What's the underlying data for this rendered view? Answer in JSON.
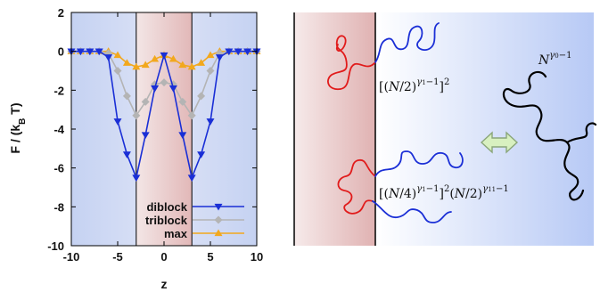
{
  "chart_data": {
    "type": "line",
    "xlabel": "z",
    "ylabel_main": "F / (k",
    "ylabel_sub": "B",
    "ylabel_end": " T)",
    "xlim": [
      -10,
      10
    ],
    "ylim": [
      -10,
      2
    ],
    "x_ticks": [
      -10,
      -5,
      0,
      5,
      10
    ],
    "y_ticks": [
      2,
      0,
      -2,
      -4,
      -6,
      -8,
      -10
    ],
    "boundaries": [
      -3,
      3
    ],
    "legend_position": "bottom-right",
    "series": [
      {
        "name": "diblock",
        "color": "#1a2fd6",
        "marker": "triangle-down",
        "x": [
          -10,
          -9,
          -8,
          -7,
          -6,
          -5,
          -4,
          -3,
          -2,
          -1,
          0,
          1,
          2,
          3,
          4,
          5,
          6,
          7,
          8,
          9,
          10
        ],
        "y": [
          0,
          0,
          0,
          0,
          -0.3,
          -3.6,
          -5.3,
          -6.5,
          -4.3,
          -1.9,
          -0.2,
          -1.9,
          -4.3,
          -6.5,
          -5.3,
          -3.6,
          -0.3,
          0,
          0,
          0,
          0
        ]
      },
      {
        "name": "triblock",
        "color": "#b4b4b4",
        "marker": "diamond",
        "x": [
          -10,
          -9,
          -8,
          -7,
          -6,
          -5,
          -4,
          -3,
          -2,
          -1,
          0,
          1,
          2,
          3,
          4,
          5,
          6,
          7,
          8,
          9,
          10
        ],
        "y": [
          0,
          0,
          0,
          0,
          -0.1,
          -1.0,
          -2.3,
          -3.3,
          -2.6,
          -1.7,
          -1.6,
          -1.7,
          -2.6,
          -3.3,
          -2.3,
          -1.0,
          -0.1,
          0,
          0,
          0,
          0
        ]
      },
      {
        "name": "max",
        "color": "#f2a81d",
        "marker": "triangle-up",
        "x": [
          -10,
          -9,
          -8,
          -7,
          -6,
          -5,
          -4,
          -3,
          -2,
          -1,
          0,
          1,
          2,
          3,
          4,
          5,
          6,
          7,
          8,
          9,
          10
        ],
        "y": [
          0,
          0,
          0,
          0,
          0,
          -0.2,
          -0.6,
          -0.8,
          -0.7,
          -0.4,
          -0.2,
          -0.4,
          -0.7,
          -0.8,
          -0.6,
          -0.2,
          0,
          0,
          0,
          0,
          0
        ]
      }
    ]
  },
  "schematic": {
    "formula_top": "[(N/2)^{γ1−1}]^2",
    "formula_bottom": "[(N/4)^{γ1−1}]^2 (N/2)^{γ11−1}",
    "formula_right": "N^{γ0−1}",
    "colors": {
      "red_chain": "#e11b1b",
      "blue_chain": "#1b2fd6",
      "black_chain": "#000000",
      "arrow_fill": "#d8f0c0",
      "arrow_stroke": "#8aa67a"
    }
  }
}
